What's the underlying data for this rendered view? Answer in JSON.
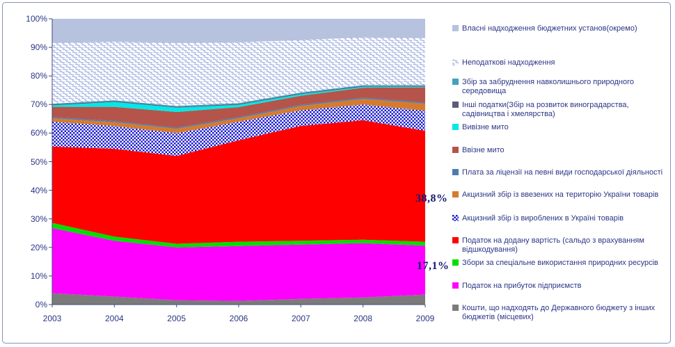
{
  "chart_data": {
    "type": "area",
    "stacking": "percent_stacked",
    "title": "",
    "xlabel": "",
    "ylabel": "",
    "grid": false,
    "legend_position": "right",
    "categories": [
      "2003",
      "2004",
      "2005",
      "2006",
      "2007",
      "2008",
      "2009"
    ],
    "y_axis": {
      "min": 0,
      "max": 100,
      "labels": [
        "0%",
        "10%",
        "20%",
        "30%",
        "40%",
        "50%",
        "60%",
        "70%",
        "80%",
        "90%",
        "100%"
      ]
    },
    "series": [
      {
        "id": "local-budget-transfers",
        "label": "Кошти, що надходять до Державного бюджету з інших бюджетів (місцевих)",
        "fill": "#7B7B7B",
        "values": [
          4.0,
          2.8,
          1.5,
          1.3,
          2.0,
          2.5,
          3.5
        ]
      },
      {
        "id": "enterprise-profit-tax",
        "label": "Податок на прибуток підприємств",
        "fill": "#FF00FF",
        "values": [
          22.8,
          19.5,
          18.5,
          19.2,
          19.0,
          19.0,
          17.1
        ]
      },
      {
        "id": "natural-resources-fees",
        "label": "Збори за спеціальне використання природних ресурсів",
        "fill": "#00DF00",
        "values": [
          1.8,
          1.5,
          1.3,
          1.5,
          1.3,
          1.2,
          1.4
        ]
      },
      {
        "id": "vat",
        "label": "Податок на додану вартість (сальдо з врахуванням відшкодування)",
        "fill": "#FF0000",
        "values": [
          26.7,
          30.7,
          30.7,
          35.5,
          40.2,
          41.8,
          38.8
        ]
      },
      {
        "id": "excise-domestic-goods",
        "label": "Акцизний збір із вироблених в Україні товарів",
        "fill": "pat-checker",
        "values": [
          8.7,
          8.0,
          8.0,
          6.5,
          5.5,
          5.5,
          7.0
        ]
      },
      {
        "id": "excise-imported-goods",
        "label": "Акцизний збір із ввезених на територію України товарів",
        "fill": "#D67B2E",
        "values": [
          1.2,
          1.3,
          1.5,
          1.2,
          1.5,
          2.0,
          2.5
        ]
      },
      {
        "id": "license-fees",
        "label": "Плата за ліцензії на певні види господарської діяльності",
        "fill": "#4E7CB0",
        "values": [
          0.4,
          0.4,
          0.4,
          0.4,
          0.4,
          0.4,
          0.4
        ]
      },
      {
        "id": "import-duty",
        "label": "Ввізне мито",
        "fill": "#B5544A",
        "values": [
          3.6,
          5.0,
          5.5,
          3.5,
          3.2,
          3.5,
          5.3
        ]
      },
      {
        "id": "export-duty",
        "label": "Вивізне мито",
        "fill": "#00E8E8",
        "values": [
          0.5,
          1.7,
          1.5,
          0.8,
          0.5,
          0.3,
          0.2
        ]
      },
      {
        "id": "other-taxes",
        "label": "Інші податки(Збір на розвиток виноградарства, садівництва і хмелярства)",
        "fill": "#5C5C78",
        "values": [
          0.3,
          0.3,
          0.3,
          0.3,
          0.3,
          0.3,
          0.3
        ]
      },
      {
        "id": "pollution-fee",
        "label": "Збір за забруднення навколишнього природного середовища",
        "fill": "#45A0BE",
        "values": [
          0.3,
          0.3,
          0.3,
          0.3,
          0.3,
          0.3,
          0.3
        ]
      },
      {
        "id": "non-tax-revenues",
        "label": "Неподаткові надходження",
        "fill": "pat-wave",
        "values": [
          21.2,
          20.5,
          22.0,
          21.3,
          18.3,
          16.7,
          16.4
        ]
      },
      {
        "id": "own-revenues-budget-institutions",
        "label": "Власні надходження бюджетних установ(окремо)",
        "fill": "#B6C2DE",
        "values": [
          8.5,
          8.0,
          8.5,
          8.2,
          7.5,
          6.5,
          6.8
        ]
      }
    ],
    "annotations": [
      {
        "id": "vat-share-2009",
        "text": "38,8%"
      },
      {
        "id": "profit-tax-share-2009",
        "text": "17,1%"
      }
    ]
  },
  "colors": {
    "axis": "#40487E",
    "axis_text": "#2B3585",
    "annotation_text": "#181878",
    "frame_border": "#8890BC",
    "wave_stroke": "#8CA0D8",
    "checker_blue": "#1A1ACC"
  }
}
